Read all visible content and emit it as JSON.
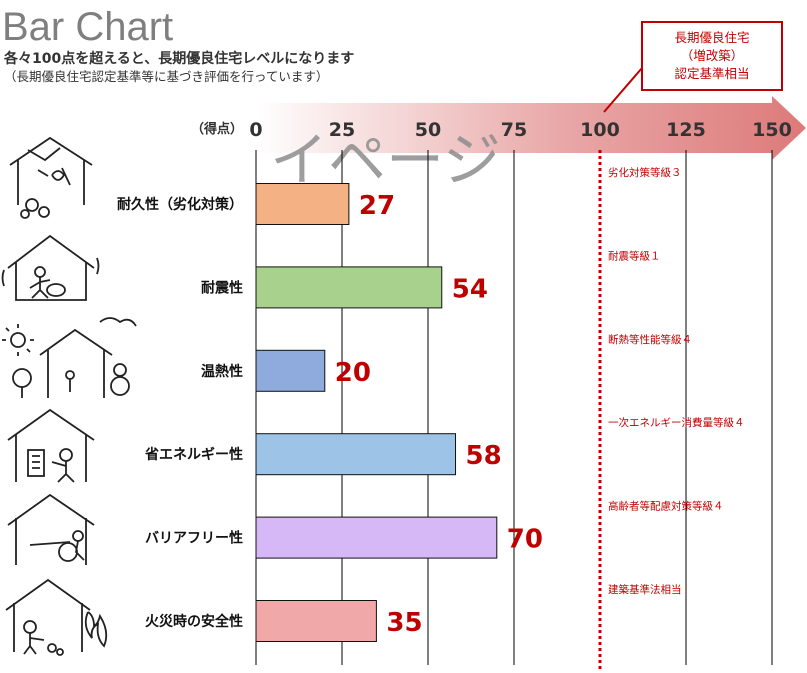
{
  "header": {
    "title": "Bar Chart",
    "subtitle": "各々100点を超えると、長期優良住宅レベルになります",
    "note": "（長期優良住宅認定基準等に基づき評価を行っています）"
  },
  "callout": {
    "line1": "長期優良住宅",
    "line2": "（増改築）",
    "line3": "認定基準相当"
  },
  "watermark": "イページ",
  "chart_data": {
    "type": "bar",
    "orientation": "horizontal",
    "axis_unit_label": "（得点）",
    "xlim": [
      0,
      150
    ],
    "ticks": [
      0,
      25,
      50,
      75,
      100,
      125,
      150
    ],
    "grid": true,
    "threshold": 100,
    "categories": [
      "耐久性（劣化対策）",
      "耐震性",
      "温熱性",
      "省エネルギー性",
      "バリアフリー性",
      "火災時の安全性"
    ],
    "values": [
      27,
      54,
      20,
      58,
      70,
      35
    ],
    "bar_colors": [
      "#f4b183",
      "#a9d18e",
      "#8faadc",
      "#9dc3e6",
      "#d5b8f5",
      "#f0a8a8"
    ],
    "threshold_labels": [
      "劣化対策等級３",
      "耐震等級１",
      "断熱等性能等級４",
      "一次エネルギー消費量等級４",
      "高齢者等配慮対策等級４",
      "建築基準法相当"
    ],
    "value_label_color": "#c00000",
    "threshold_color": "#c00000",
    "arrow_color": "#dd7a7a"
  }
}
